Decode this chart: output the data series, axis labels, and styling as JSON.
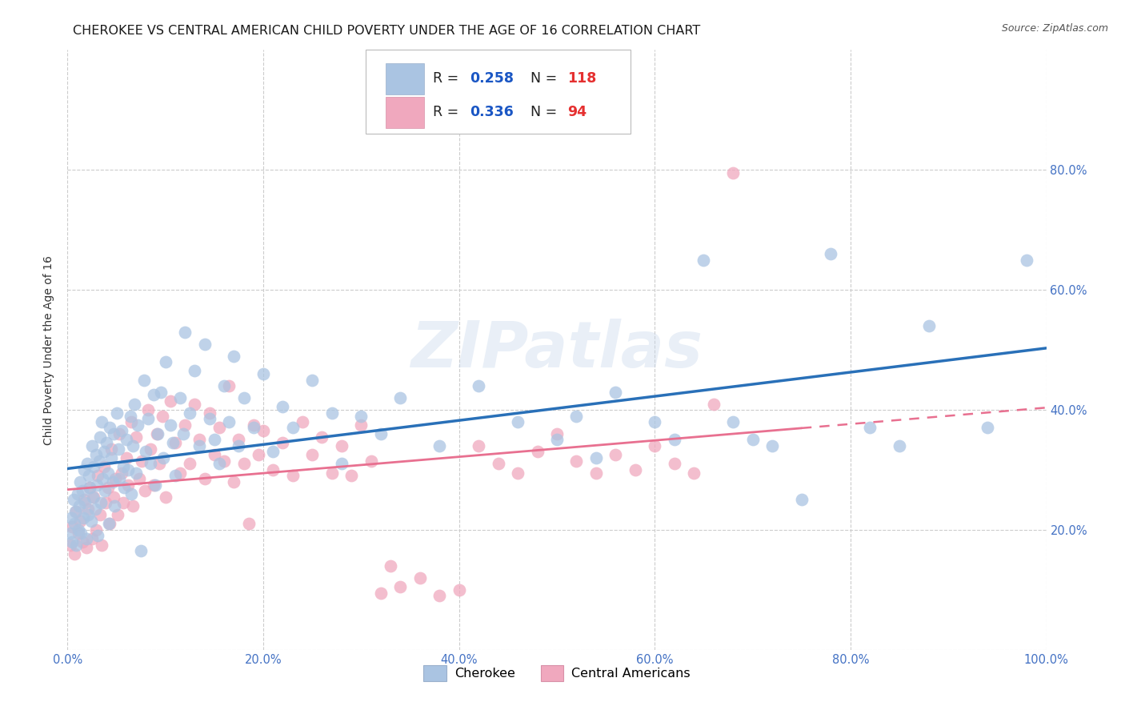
{
  "title": "CHEROKEE VS CENTRAL AMERICAN CHILD POVERTY UNDER THE AGE OF 16 CORRELATION CHART",
  "source": "Source: ZipAtlas.com",
  "ylabel": "Child Poverty Under the Age of 16",
  "watermark": "ZIPatlas",
  "series": [
    {
      "name": "Cherokee",
      "R": 0.258,
      "N": 118,
      "color": "#aac4e2",
      "line_color": "#2970b8",
      "marker_edge": "#aac4e2"
    },
    {
      "name": "Central Americans",
      "R": 0.336,
      "N": 94,
      "color": "#f0a8be",
      "line_color": "#e87090",
      "marker_edge": "#f0a8be"
    }
  ],
  "xlim": [
    0,
    1
  ],
  "ylim": [
    0,
    1
  ],
  "xticks": [
    0.0,
    0.2,
    0.4,
    0.6,
    0.8,
    1.0
  ],
  "yticks": [
    0.2,
    0.4,
    0.6,
    0.8
  ],
  "xticklabels": [
    "0.0%",
    "20.0%",
    "40.0%",
    "60.0%",
    "80.0%",
    "100.0%"
  ],
  "yticklabels": [
    "20.0%",
    "40.0%",
    "60.0%",
    "80.0%"
  ],
  "background_color": "#ffffff",
  "grid_color": "#cccccc",
  "tick_color": "#4472c4",
  "legend_R_color": "#1a56c4",
  "legend_N_color": "#e53030",
  "title_fontsize": 11.5,
  "tick_fontsize": 10.5,
  "ylabel_fontsize": 10
}
